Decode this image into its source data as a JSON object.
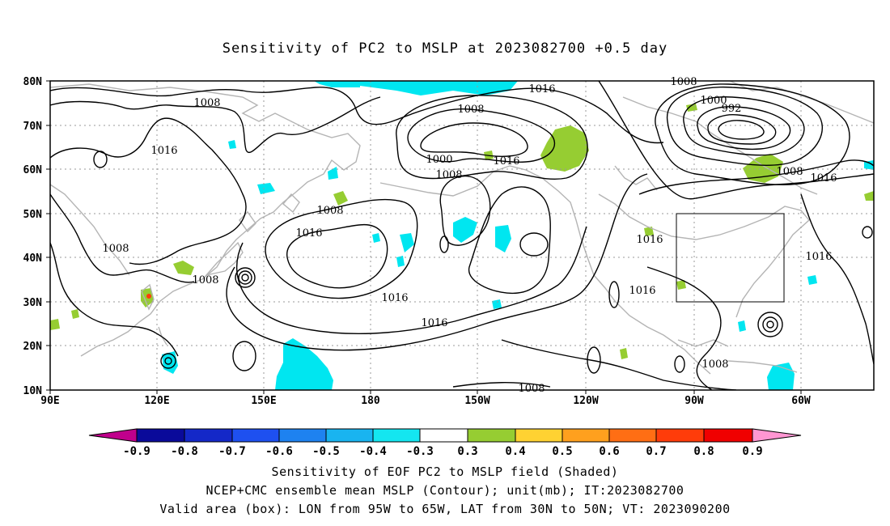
{
  "title": "Sensitivity of PC2 to MSLP at 2023082700 +0.5 day",
  "map": {
    "lon_labels": [
      "90E",
      "120E",
      "150E",
      "180",
      "150W",
      "120W",
      "90W",
      "60W"
    ],
    "lat_labels": [
      "10N",
      "20N",
      "30N",
      "40N",
      "50N",
      "60N",
      "70N",
      "80N"
    ],
    "contour_labels": [
      "1016",
      "1008",
      "1008",
      "1000",
      "992",
      "1008",
      "1000",
      "1008",
      "1016",
      "1016",
      "1008",
      "1016",
      "1016",
      "1016",
      "1008",
      "1008",
      "1016",
      "1016",
      "1016",
      "1008",
      "1008",
      "1016",
      "1008",
      "1016"
    ],
    "valid_box": {
      "lon_from": "95W",
      "lon_to": "65W",
      "lat_from": "30N",
      "lat_to": "50N"
    }
  },
  "colorbar": {
    "labels": [
      "-0.9",
      "-0.8",
      "-0.7",
      "-0.6",
      "-0.5",
      "-0.4",
      "-0.3",
      "0.3",
      "0.4",
      "0.5",
      "0.6",
      "0.7",
      "0.8",
      "0.9"
    ],
    "colors": [
      "#c0008c",
      "#0a0a9a",
      "#1428c8",
      "#1e50f0",
      "#1e82f0",
      "#19b4f0",
      "#14e6f0",
      "#ffffff",
      "#96cd32",
      "#ffd232",
      "#ffa01e",
      "#ff6e14",
      "#ff3c0a",
      "#f00000",
      "#ff96d2"
    ]
  },
  "colors": {
    "neg_shade": "#00e6f0",
    "pos_shade": "#96cd32",
    "coast": "#b4b4b4",
    "contour": "#000000"
  },
  "footer": {
    "line1": "Sensitivity of EOF PC2 to MSLP field (Shaded)",
    "line2": "NCEP+CMC ensemble mean MSLP (Contour); unit(mb); IT:2023082700",
    "line3": "Valid area (box): LON from 95W to 65W, LAT from 30N to 50N; VT: 2023090200"
  }
}
